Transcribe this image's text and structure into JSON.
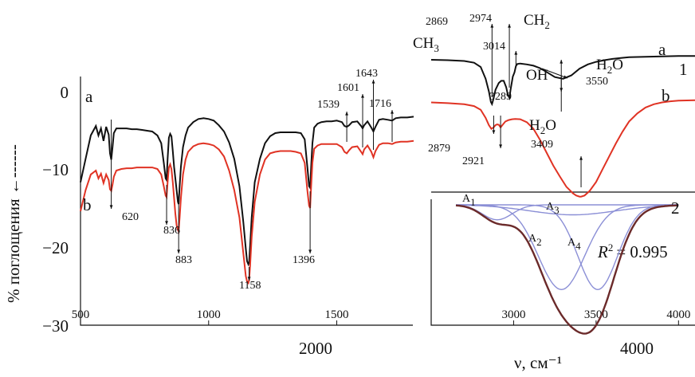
{
  "ylabel": "% поглощения ←------",
  "xlabel": "ν, см⁻¹",
  "outer_x_ticks": [
    "2000",
    "4000"
  ],
  "left_y_ticks": [
    "0",
    "−10",
    "−20",
    "−30"
  ],
  "r2_text": "= 0.995",
  "colors": {
    "a": "#111111",
    "b": "#e03324",
    "fit": "#8b8fd6",
    "envelope": "#6b2a2a"
  },
  "chart_data": [
    {
      "type": "line",
      "panel": "left",
      "x_ticks": [
        "500",
        "1000",
        "1500"
      ],
      "xlim": [
        500,
        1800
      ],
      "ylim": [
        -30,
        2
      ],
      "grid": false,
      "series": [
        {
          "name": "a",
          "x": [
            500,
            520,
            540,
            560,
            570,
            580,
            590,
            600,
            610,
            615,
            620,
            625,
            630,
            640,
            660,
            680,
            700,
            720,
            740,
            760,
            780,
            800,
            815,
            825,
            832,
            836,
            840,
            845,
            850,
            855,
            860,
            865,
            870,
            875,
            880,
            883,
            887,
            892,
            900,
            910,
            920,
            940,
            960,
            980,
            1000,
            1020,
            1040,
            1060,
            1080,
            1100,
            1120,
            1135,
            1145,
            1150,
            1155,
            1158,
            1162,
            1168,
            1180,
            1200,
            1220,
            1240,
            1260,
            1280,
            1300,
            1320,
            1340,
            1360,
            1375,
            1385,
            1392,
            1396,
            1400,
            1405,
            1412,
            1425,
            1440,
            1460,
            1480,
            1500,
            1520,
            1530,
            1539,
            1548,
            1560,
            1580,
            1595,
            1601,
            1607,
            1620,
            1635,
            1643,
            1651,
            1665,
            1680,
            1700,
            1716,
            1730,
            1750,
            1775,
            1800
          ],
          "y": [
            -11.5,
            -8.5,
            -5.5,
            -4.3,
            -5.5,
            -4.6,
            -6.2,
            -4.4,
            -5.4,
            -7.8,
            -8.6,
            -7.0,
            -5.2,
            -4.6,
            -4.6,
            -4.6,
            -4.7,
            -4.7,
            -4.8,
            -4.9,
            -5.0,
            -5.5,
            -6.5,
            -9.0,
            -11.0,
            -11.2,
            -8.5,
            -5.8,
            -5.3,
            -5.6,
            -7.5,
            -9.5,
            -11.0,
            -12.5,
            -14.0,
            -14.3,
            -12.0,
            -9.5,
            -7.0,
            -5.5,
            -4.5,
            -3.8,
            -3.4,
            -3.3,
            -3.4,
            -3.6,
            -4.2,
            -5.0,
            -6.4,
            -8.5,
            -12.0,
            -16.5,
            -20.0,
            -21.6,
            -22.0,
            -21.7,
            -19.5,
            -16.0,
            -11.5,
            -8.5,
            -6.5,
            -5.6,
            -5.2,
            -5.1,
            -5.1,
            -5.1,
            -5.1,
            -5.2,
            -6.0,
            -9.5,
            -12.0,
            -12.2,
            -9.5,
            -6.5,
            -4.5,
            -4.0,
            -3.8,
            -3.7,
            -3.7,
            -3.6,
            -3.8,
            -4.3,
            -4.4,
            -4.2,
            -3.8,
            -3.7,
            -4.3,
            -4.6,
            -4.2,
            -3.7,
            -4.5,
            -5.0,
            -4.4,
            -3.5,
            -3.4,
            -3.5,
            -3.6,
            -3.3,
            -3.2,
            -3.2,
            -3.1
          ]
        },
        {
          "name": "b",
          "x": [
            500,
            520,
            540,
            560,
            570,
            580,
            590,
            600,
            610,
            615,
            620,
            625,
            630,
            640,
            660,
            680,
            700,
            720,
            740,
            760,
            780,
            800,
            815,
            825,
            832,
            836,
            840,
            845,
            850,
            855,
            860,
            865,
            870,
            875,
            880,
            883,
            887,
            892,
            900,
            910,
            920,
            940,
            960,
            980,
            1000,
            1020,
            1040,
            1060,
            1080,
            1100,
            1120,
            1135,
            1145,
            1150,
            1155,
            1158,
            1162,
            1168,
            1180,
            1200,
            1220,
            1240,
            1260,
            1280,
            1300,
            1320,
            1340,
            1360,
            1375,
            1385,
            1392,
            1396,
            1400,
            1405,
            1412,
            1425,
            1440,
            1460,
            1480,
            1500,
            1520,
            1530,
            1539,
            1548,
            1560,
            1580,
            1595,
            1601,
            1607,
            1620,
            1635,
            1643,
            1651,
            1665,
            1680,
            1700,
            1716,
            1730,
            1750,
            1775,
            1800
          ],
          "y": [
            -15.2,
            -12.5,
            -10.5,
            -10.0,
            -11.0,
            -10.4,
            -11.6,
            -10.5,
            -11.2,
            -12.4,
            -12.6,
            -11.8,
            -10.8,
            -10.0,
            -9.8,
            -9.7,
            -9.7,
            -9.6,
            -9.6,
            -9.6,
            -9.6,
            -9.8,
            -10.5,
            -12.0,
            -13.2,
            -13.4,
            -11.5,
            -9.6,
            -9.2,
            -9.8,
            -11.5,
            -13.5,
            -15.5,
            -17.0,
            -17.6,
            -17.8,
            -16.0,
            -13.5,
            -10.5,
            -8.6,
            -7.6,
            -6.9,
            -6.6,
            -6.5,
            -6.6,
            -6.8,
            -7.3,
            -8.2,
            -10.0,
            -12.5,
            -16.0,
            -20.5,
            -23.5,
            -24.2,
            -24.4,
            -24.0,
            -22.0,
            -18.5,
            -14.0,
            -10.5,
            -8.6,
            -7.8,
            -7.6,
            -7.5,
            -7.5,
            -7.5,
            -7.6,
            -7.8,
            -9.0,
            -12.5,
            -14.5,
            -14.8,
            -12.0,
            -9.0,
            -7.2,
            -6.8,
            -6.6,
            -6.6,
            -6.6,
            -6.6,
            -7.0,
            -7.6,
            -7.8,
            -7.4,
            -7.0,
            -6.9,
            -7.6,
            -7.9,
            -7.3,
            -6.8,
            -7.6,
            -8.3,
            -7.5,
            -6.7,
            -6.5,
            -6.5,
            -6.6,
            -6.4,
            -6.3,
            -6.3,
            -6.2
          ]
        }
      ],
      "curve_labels": [
        "a",
        "b"
      ],
      "annotations": [
        "620",
        "836",
        "883",
        "1158",
        "1396",
        "1539",
        "1601",
        "1643",
        "1716"
      ]
    },
    {
      "type": "line",
      "panel": "right",
      "x_ticks": [
        "3000",
        "3500",
        "4000"
      ],
      "xlim": [
        2500,
        4100
      ],
      "grid": false,
      "series": [
        {
          "name": "a",
          "x": [
            2500,
            2600,
            2700,
            2760,
            2800,
            2830,
            2850,
            2862,
            2869,
            2876,
            2890,
            2910,
            2925,
            2940,
            2955,
            2965,
            2974,
            2982,
            2995,
            3005,
            3014,
            3022,
            3040,
            3080,
            3120,
            3160,
            3200,
            3250,
            3300,
            3350,
            3400,
            3450,
            3500,
            3550,
            3600,
            3650,
            3700,
            3800,
            3900,
            4000,
            4100
          ],
          "y": [
            -1.5,
            -1.6,
            -1.8,
            -2.2,
            -3.2,
            -6.0,
            -9.0,
            -11.5,
            -12.0,
            -11.0,
            -8.6,
            -7.0,
            -6.5,
            -6.5,
            -8.0,
            -9.8,
            -10.5,
            -8.5,
            -5.5,
            -4.5,
            -3.0,
            -2.5,
            -2.4,
            -2.6,
            -2.9,
            -3.5,
            -4.4,
            -5.6,
            -6.0,
            -5.2,
            -3.6,
            -2.6,
            -2.0,
            -1.6,
            -1.3,
            -1.1,
            -0.9,
            -0.8,
            -0.7,
            -0.6,
            -0.6
          ]
        },
        {
          "name": "b",
          "x": [
            2500,
            2600,
            2700,
            2760,
            2800,
            2830,
            2850,
            2865,
            2879,
            2890,
            2900,
            2910,
            2921,
            2935,
            2950,
            2970,
            2990,
            3010,
            3040,
            3080,
            3120,
            3160,
            3200,
            3240,
            3280,
            3320,
            3360,
            3380,
            3400,
            3409,
            3430,
            3460,
            3500,
            3540,
            3580,
            3620,
            3660,
            3700,
            3750,
            3800,
            3850,
            3900,
            3950,
            4000,
            4100
          ],
          "y": [
            -13.8,
            -14.0,
            -14.3,
            -14.8,
            -15.8,
            -18.0,
            -20.0,
            -21.0,
            -20.6,
            -20.0,
            -19.8,
            -19.9,
            -20.6,
            -19.8,
            -19.0,
            -18.6,
            -18.4,
            -18.3,
            -18.4,
            -19.2,
            -21.0,
            -24.0,
            -27.5,
            -31.0,
            -34.0,
            -36.8,
            -38.6,
            -39.2,
            -39.5,
            -39.5,
            -39.2,
            -38.0,
            -35.5,
            -32.0,
            -28.5,
            -25.0,
            -21.8,
            -19.0,
            -16.8,
            -15.2,
            -14.3,
            -13.8,
            -13.5,
            -13.3,
            -13.2
          ]
        }
      ],
      "curve_labels": [
        "a",
        "b",
        "1"
      ],
      "annotations": [
        "2869",
        "2974",
        "3014",
        "3289",
        "2879",
        "2921",
        "3409",
        "3550"
      ],
      "molecules": [
        {
          "text": "CH",
          "sub": "3"
        },
        {
          "text": "CH",
          "sub": "2"
        },
        {
          "text": "OH",
          "sub": ""
        },
        {
          "text": "H",
          "sub": "2",
          "tail": "O"
        },
        {
          "text": "H",
          "sub": "2",
          "tail": "O"
        }
      ]
    },
    {
      "type": "line",
      "panel": "right-deconvolution",
      "xlim": [
        2500,
        4100
      ],
      "grid": false,
      "curve_label": "2",
      "series": [
        {
          "name": "A1",
          "center": 2900,
          "width": 90,
          "amplitude": -1.5
        },
        {
          "name": "A2",
          "center": 3290,
          "width": 140,
          "amplitude": -8.5
        },
        {
          "name": "A3",
          "center": 3360,
          "width": 260,
          "amplitude": -1.0
        },
        {
          "name": "A4",
          "center": 3510,
          "width": 120,
          "amplitude": -8.5
        }
      ],
      "component_labels": [
        {
          "text": "A",
          "sub": "1"
        },
        {
          "text": "A",
          "sub": "2"
        },
        {
          "text": "A",
          "sub": "3"
        },
        {
          "text": "A",
          "sub": "4"
        }
      ],
      "r2_label": {
        "text": "R",
        "sup": "2"
      }
    }
  ]
}
